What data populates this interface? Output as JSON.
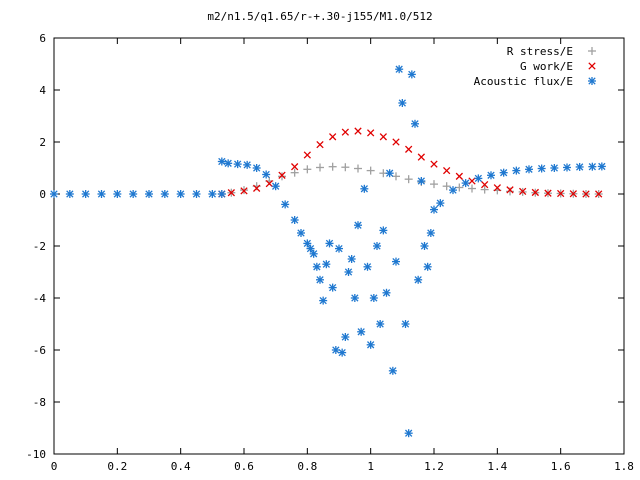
{
  "chart_data": {
    "type": "scatter",
    "title": "m2/n1.5/q1.65/r-+.30-j155/M1.0/512",
    "xlabel": "",
    "ylabel": "",
    "xlim": [
      0,
      1.8
    ],
    "ylim": [
      -10,
      6
    ],
    "xticks": [
      "0",
      "0.2",
      "0.4",
      "0.6",
      "0.8",
      "1",
      "1.2",
      "1.4",
      "1.6",
      "1.8"
    ],
    "yticks": [
      "6",
      "4",
      "2",
      "0",
      "-2",
      "-4",
      "-6",
      "-8",
      "-10"
    ],
    "grid": false,
    "legend_position": "top-right",
    "series": [
      {
        "name": "R stress/E",
        "marker": "plus",
        "color": "#a0a0a0",
        "points": [
          [
            0.53,
            0.0
          ],
          [
            0.56,
            0.05
          ],
          [
            0.6,
            0.15
          ],
          [
            0.64,
            0.3
          ],
          [
            0.68,
            0.5
          ],
          [
            0.72,
            0.68
          ],
          [
            0.76,
            0.82
          ],
          [
            0.8,
            0.95
          ],
          [
            0.84,
            1.02
          ],
          [
            0.88,
            1.05
          ],
          [
            0.92,
            1.03
          ],
          [
            0.96,
            0.98
          ],
          [
            1.0,
            0.9
          ],
          [
            1.04,
            0.8
          ],
          [
            1.08,
            0.68
          ],
          [
            1.12,
            0.57
          ],
          [
            1.16,
            0.46
          ],
          [
            1.2,
            0.38
          ],
          [
            1.24,
            0.3
          ],
          [
            1.28,
            0.25
          ],
          [
            1.32,
            0.21
          ],
          [
            1.36,
            0.17
          ],
          [
            1.4,
            0.14
          ],
          [
            1.44,
            0.1
          ],
          [
            1.48,
            0.08
          ],
          [
            1.52,
            0.05
          ],
          [
            1.56,
            0.03
          ],
          [
            1.6,
            0.02
          ],
          [
            1.64,
            0.01
          ],
          [
            1.68,
            0.0
          ],
          [
            1.72,
            0.0
          ]
        ]
      },
      {
        "name": "G work/E",
        "marker": "cross",
        "color": "#e00000",
        "points": [
          [
            0.53,
            0.0
          ],
          [
            0.56,
            0.05
          ],
          [
            0.6,
            0.12
          ],
          [
            0.64,
            0.22
          ],
          [
            0.68,
            0.4
          ],
          [
            0.72,
            0.72
          ],
          [
            0.76,
            1.05
          ],
          [
            0.8,
            1.5
          ],
          [
            0.84,
            1.9
          ],
          [
            0.88,
            2.2
          ],
          [
            0.92,
            2.38
          ],
          [
            0.96,
            2.42
          ],
          [
            1.0,
            2.35
          ],
          [
            1.04,
            2.2
          ],
          [
            1.08,
            2.0
          ],
          [
            1.12,
            1.72
          ],
          [
            1.16,
            1.42
          ],
          [
            1.2,
            1.15
          ],
          [
            1.24,
            0.9
          ],
          [
            1.28,
            0.68
          ],
          [
            1.32,
            0.5
          ],
          [
            1.36,
            0.36
          ],
          [
            1.4,
            0.24
          ],
          [
            1.44,
            0.16
          ],
          [
            1.48,
            0.1
          ],
          [
            1.52,
            0.06
          ],
          [
            1.56,
            0.03
          ],
          [
            1.6,
            0.02
          ],
          [
            1.64,
            0.01
          ],
          [
            1.68,
            0.0
          ],
          [
            1.72,
            0.0
          ]
        ]
      },
      {
        "name": "Acoustic flux/E",
        "marker": "star",
        "color": "#1f78d0",
        "points": [
          [
            0.0,
            0.0
          ],
          [
            0.05,
            0.0
          ],
          [
            0.1,
            0.0
          ],
          [
            0.15,
            0.0
          ],
          [
            0.2,
            0.0
          ],
          [
            0.25,
            0.0
          ],
          [
            0.3,
            0.0
          ],
          [
            0.35,
            0.0
          ],
          [
            0.4,
            0.0
          ],
          [
            0.45,
            0.0
          ],
          [
            0.5,
            0.0
          ],
          [
            0.53,
            0.0
          ],
          [
            0.53,
            1.25
          ],
          [
            0.55,
            1.18
          ],
          [
            0.58,
            1.15
          ],
          [
            0.61,
            1.12
          ],
          [
            0.64,
            1.0
          ],
          [
            0.67,
            0.75
          ],
          [
            0.7,
            0.3
          ],
          [
            0.73,
            -0.4
          ],
          [
            0.76,
            -1.0
          ],
          [
            0.78,
            -1.5
          ],
          [
            0.8,
            -1.9
          ],
          [
            0.81,
            -2.1
          ],
          [
            0.82,
            -2.3
          ],
          [
            0.83,
            -2.8
          ],
          [
            0.84,
            -3.3
          ],
          [
            0.85,
            -4.1
          ],
          [
            0.86,
            -2.7
          ],
          [
            0.87,
            -1.9
          ],
          [
            0.88,
            -3.6
          ],
          [
            0.89,
            -6.0
          ],
          [
            0.9,
            -2.1
          ],
          [
            0.91,
            -6.1
          ],
          [
            0.92,
            -5.5
          ],
          [
            0.93,
            -3.0
          ],
          [
            0.94,
            -2.5
          ],
          [
            0.95,
            -4.0
          ],
          [
            0.96,
            -1.2
          ],
          [
            0.97,
            -5.3
          ],
          [
            0.98,
            0.2
          ],
          [
            0.99,
            -2.8
          ],
          [
            1.0,
            -5.8
          ],
          [
            1.01,
            -4.0
          ],
          [
            1.02,
            -2.0
          ],
          [
            1.03,
            -5.0
          ],
          [
            1.04,
            -1.4
          ],
          [
            1.05,
            -3.8
          ],
          [
            1.06,
            0.8
          ],
          [
            1.07,
            -6.8
          ],
          [
            1.08,
            -2.6
          ],
          [
            1.09,
            4.8
          ],
          [
            1.1,
            3.5
          ],
          [
            1.11,
            -5.0
          ],
          [
            1.12,
            -9.2
          ],
          [
            1.13,
            4.6
          ],
          [
            1.14,
            2.7
          ],
          [
            1.15,
            -3.3
          ],
          [
            1.16,
            0.5
          ],
          [
            1.17,
            -2.0
          ],
          [
            1.18,
            -2.8
          ],
          [
            1.19,
            -1.5
          ],
          [
            1.2,
            -0.6
          ],
          [
            1.22,
            -0.35
          ],
          [
            1.26,
            0.15
          ],
          [
            1.3,
            0.42
          ],
          [
            1.34,
            0.6
          ],
          [
            1.38,
            0.72
          ],
          [
            1.42,
            0.82
          ],
          [
            1.46,
            0.9
          ],
          [
            1.5,
            0.95
          ],
          [
            1.54,
            0.98
          ],
          [
            1.58,
            1.0
          ],
          [
            1.62,
            1.02
          ],
          [
            1.66,
            1.04
          ],
          [
            1.7,
            1.05
          ],
          [
            1.73,
            1.06
          ]
        ]
      }
    ]
  }
}
